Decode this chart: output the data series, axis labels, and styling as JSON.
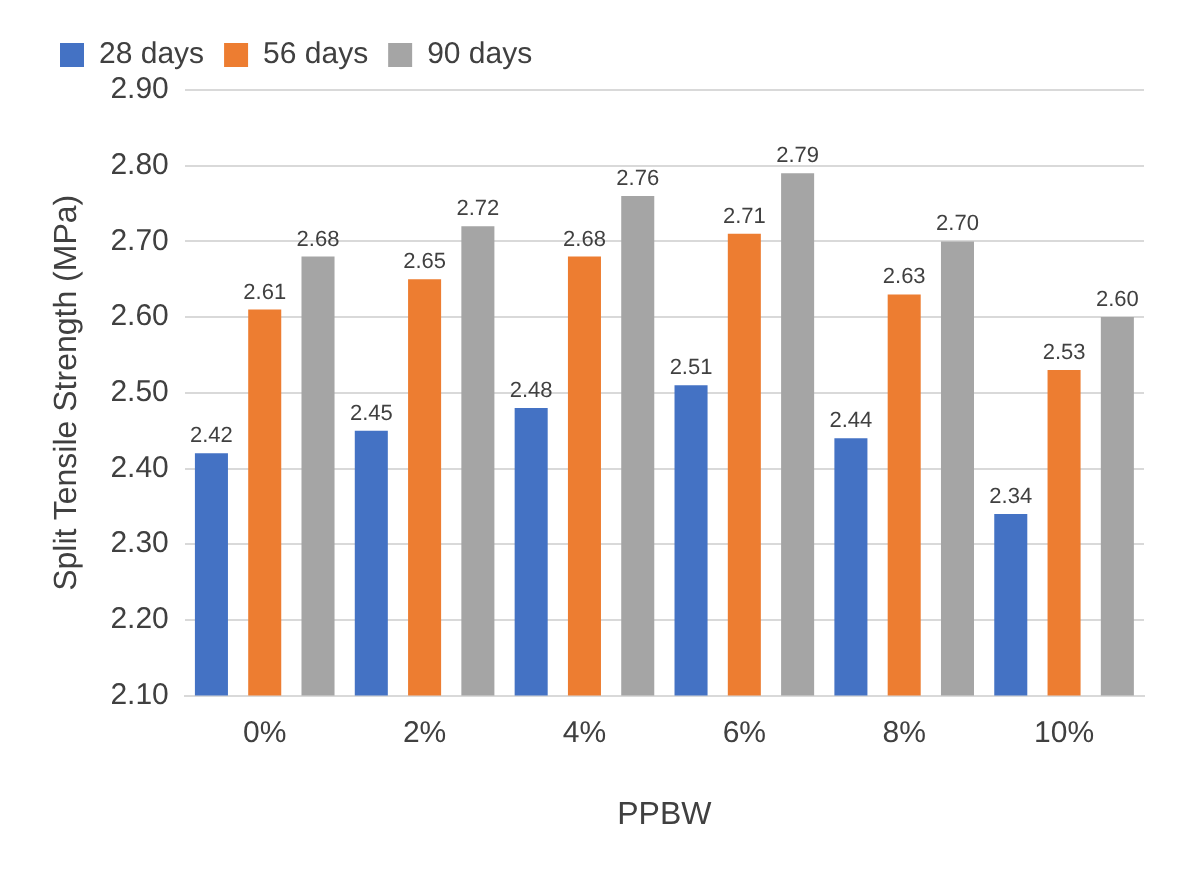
{
  "chart_data": {
    "type": "bar",
    "xlabel": "PPBW",
    "ylabel": "Split Tensile Strength (MPa)",
    "categories": [
      "0%",
      "2%",
      "4%",
      "6%",
      "8%",
      "10%"
    ],
    "series": [
      {
        "name": "28 days",
        "color": "#4472c4",
        "values": [
          2.42,
          2.45,
          2.48,
          2.51,
          2.44,
          2.34
        ],
        "value_labels": [
          "2.42",
          "2.45",
          "2.48",
          "2.51",
          "2.44",
          "2.34"
        ]
      },
      {
        "name": "56 days",
        "color": "#ed7d31",
        "values": [
          2.61,
          2.65,
          2.68,
          2.71,
          2.63,
          2.53
        ],
        "value_labels": [
          "2.61",
          "2.65",
          "2.68",
          "2.71",
          "2.63",
          "2.53"
        ]
      },
      {
        "name": "90 days",
        "color": "#a5a5a5",
        "values": [
          2.68,
          2.72,
          2.76,
          2.79,
          2.7,
          2.6
        ],
        "value_labels": [
          "2.68",
          "2.72",
          "2.76",
          "2.79",
          "2.70",
          "2.60"
        ]
      }
    ],
    "ylim": [
      2.1,
      2.9
    ],
    "yticks": [
      {
        "value": 2.1,
        "label": "2.10"
      },
      {
        "value": 2.2,
        "label": "2.20"
      },
      {
        "value": 2.3,
        "label": "2.30"
      },
      {
        "value": 2.4,
        "label": "2.40"
      },
      {
        "value": 2.5,
        "label": "2.50"
      },
      {
        "value": 2.6,
        "label": "2.60"
      },
      {
        "value": 2.7,
        "label": "2.70"
      },
      {
        "value": 2.8,
        "label": "2.80"
      },
      {
        "value": 2.9,
        "label": "2.90"
      }
    ],
    "grid": "y",
    "legend": "top"
  }
}
